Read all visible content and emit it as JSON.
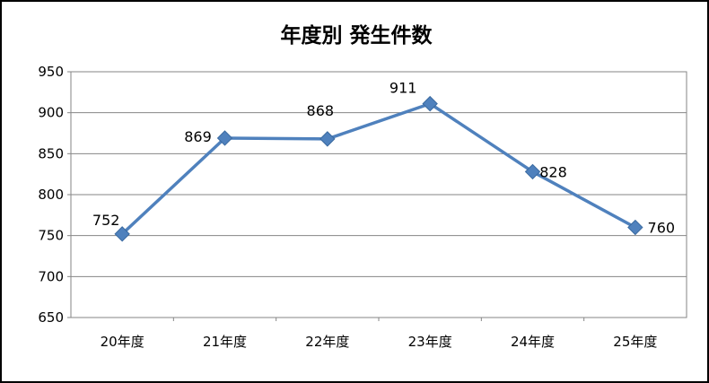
{
  "chart_data": {
    "type": "line",
    "title": "年度別  発生件数",
    "categories": [
      "20年度",
      "21年度",
      "22年度",
      "23年度",
      "24年度",
      "25年度"
    ],
    "series": [
      {
        "values": [
          752,
          869,
          868,
          911,
          828,
          760
        ]
      }
    ],
    "data_labels": [
      "752",
      "869",
      "868",
      "911",
      "828",
      "760"
    ],
    "yticks": [
      "650",
      "700",
      "750",
      "800",
      "850",
      "900",
      "950"
    ],
    "ylim": [
      650,
      950
    ],
    "y_step": 50,
    "grid": true,
    "legend": "none",
    "colors": {
      "line": "#4F81BD",
      "marker": "#4F81BD",
      "grid": "#868686",
      "axis": "#868686",
      "frame": "#000000"
    }
  }
}
